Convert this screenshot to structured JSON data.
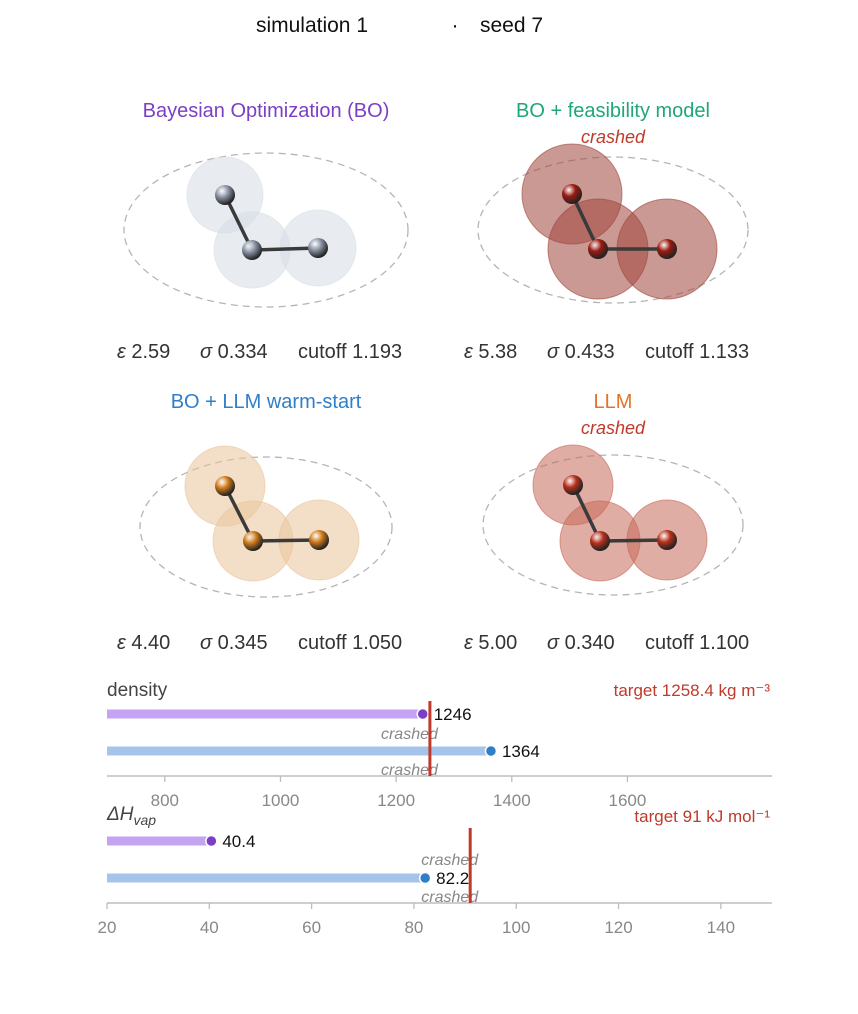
{
  "header": {
    "simulation": "simulation 1",
    "separator": "·",
    "seed": "seed 7"
  },
  "panels": [
    {
      "title": "Bayesian Optimization (BO)",
      "title_color": "#7b3fc4",
      "status": "",
      "epsilon": "2.59",
      "sigma": "0.334",
      "cutoff": "1.193",
      "atom_color": "#8a93a6",
      "shell_color": "#d6dde6"
    },
    {
      "title": "BO + feasibility model",
      "title_color": "#1fa67a",
      "status": "crashed",
      "epsilon": "5.38",
      "sigma": "0.433",
      "cutoff": "1.133",
      "atom_color": "#9b1a10",
      "shell_color": "#a0463c"
    },
    {
      "title": "BO + LLM warm-start",
      "title_color": "#2f7fc8",
      "status": "",
      "epsilon": "4.40",
      "sigma": "0.345",
      "cutoff": "1.050",
      "atom_color": "#d07a1a",
      "shell_color": "#e9c49a"
    },
    {
      "title": "LLM",
      "title_color": "#e0742a",
      "status": "crashed",
      "epsilon": "5.00",
      "sigma": "0.340",
      "cutoff": "1.100",
      "atom_color": "#b8301c",
      "shell_color": "#c7695a"
    }
  ],
  "param_labels": {
    "epsilon": "ε",
    "sigma": "σ",
    "cutoff": "cutoff"
  },
  "chart_data": [
    {
      "type": "bar",
      "orientation": "horizontal",
      "title": "density",
      "target": {
        "value": 1258.4,
        "label": "target 1258.4 kg m⁻³"
      },
      "xlim": [
        700,
        1850
      ],
      "xticks": [
        800,
        1000,
        1200,
        1400,
        1600
      ],
      "series": [
        {
          "value": 1246,
          "label": "1246",
          "bar_color": "#c4a3f2",
          "dot_color": "#7b3fc4"
        },
        {
          "value": null,
          "label": "crashed"
        },
        {
          "value": 1364,
          "label": "1364",
          "bar_color": "#a6c4ea",
          "dot_color": "#2f7fc8"
        },
        {
          "value": null,
          "label": "crashed"
        }
      ]
    },
    {
      "type": "bar",
      "orientation": "horizontal",
      "title": "ΔH",
      "title_subscript": "vap",
      "target": {
        "value": 91,
        "label": "target 91 kJ mol⁻¹"
      },
      "xlim": [
        20,
        150
      ],
      "xticks": [
        20,
        40,
        60,
        80,
        100,
        120,
        140
      ],
      "series": [
        {
          "value": 40.4,
          "label": "40.4",
          "bar_color": "#c4a3f2",
          "dot_color": "#7b3fc4"
        },
        {
          "value": null,
          "label": "crashed"
        },
        {
          "value": 82.2,
          "label": "82.2",
          "bar_color": "#a6c4ea",
          "dot_color": "#2f7fc8"
        },
        {
          "value": null,
          "label": "crashed"
        }
      ]
    }
  ]
}
